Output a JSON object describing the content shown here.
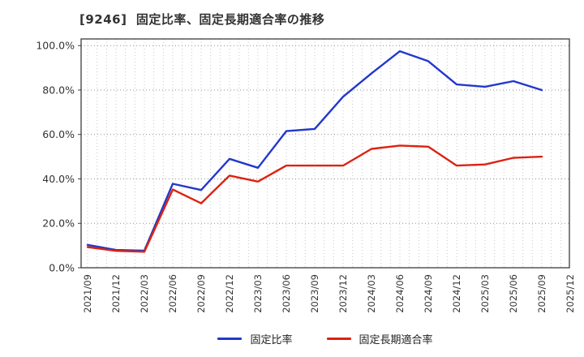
{
  "title": "[9246]  固定比率、固定長期適合率の推移",
  "chart_data": {
    "type": "line",
    "title": "[9246]  固定比率、固定長期適合率の推移",
    "x_labels": [
      "2021/09",
      "2021/12",
      "2022/03",
      "2022/06",
      "2022/09",
      "2022/12",
      "2023/03",
      "2023/06",
      "2023/09",
      "2023/12",
      "2024/03",
      "2024/06",
      "2024/09",
      "2024/12",
      "2025/03",
      "2025/06",
      "2025/09",
      "2025/12"
    ],
    "categories": [
      "2021/09",
      "2021/12",
      "2022/03",
      "2022/06",
      "2022/09",
      "2022/12",
      "2023/03",
      "2023/06",
      "2023/09",
      "2023/12",
      "2024/03",
      "2024/06",
      "2024/09",
      "2024/12",
      "2025/03",
      "2025/06",
      "2025/09"
    ],
    "series": [
      {
        "name": "固定比率",
        "color": "#2238cc",
        "values": [
          10.3,
          8.0,
          7.7,
          37.8,
          35.0,
          49.0,
          45.0,
          61.5,
          62.5,
          77.0,
          87.5,
          97.5,
          93.0,
          82.5,
          81.5,
          84.0,
          80.0
        ]
      },
      {
        "name": "固定長期適合率",
        "color": "#dd2211",
        "values": [
          9.3,
          7.6,
          7.2,
          35.2,
          29.0,
          41.5,
          38.8,
          46.0,
          46.0,
          46.0,
          53.5,
          55.0,
          54.5,
          46.0,
          46.5,
          49.5,
          50.0
        ]
      }
    ],
    "ylim": [
      0,
      103
    ],
    "ytick_step": 20,
    "ytick_labels": [
      "0.0%",
      "20.0%",
      "40.0%",
      "60.0%",
      "80.0%",
      "100.0%"
    ],
    "grid": "dotted",
    "legend_position": "bottom",
    "colors": {
      "axis_border": "#3c3c3c",
      "grid_major": "#8f8f8f",
      "grid_minor": "#c8c8c8",
      "tick_text": "#333333"
    }
  }
}
